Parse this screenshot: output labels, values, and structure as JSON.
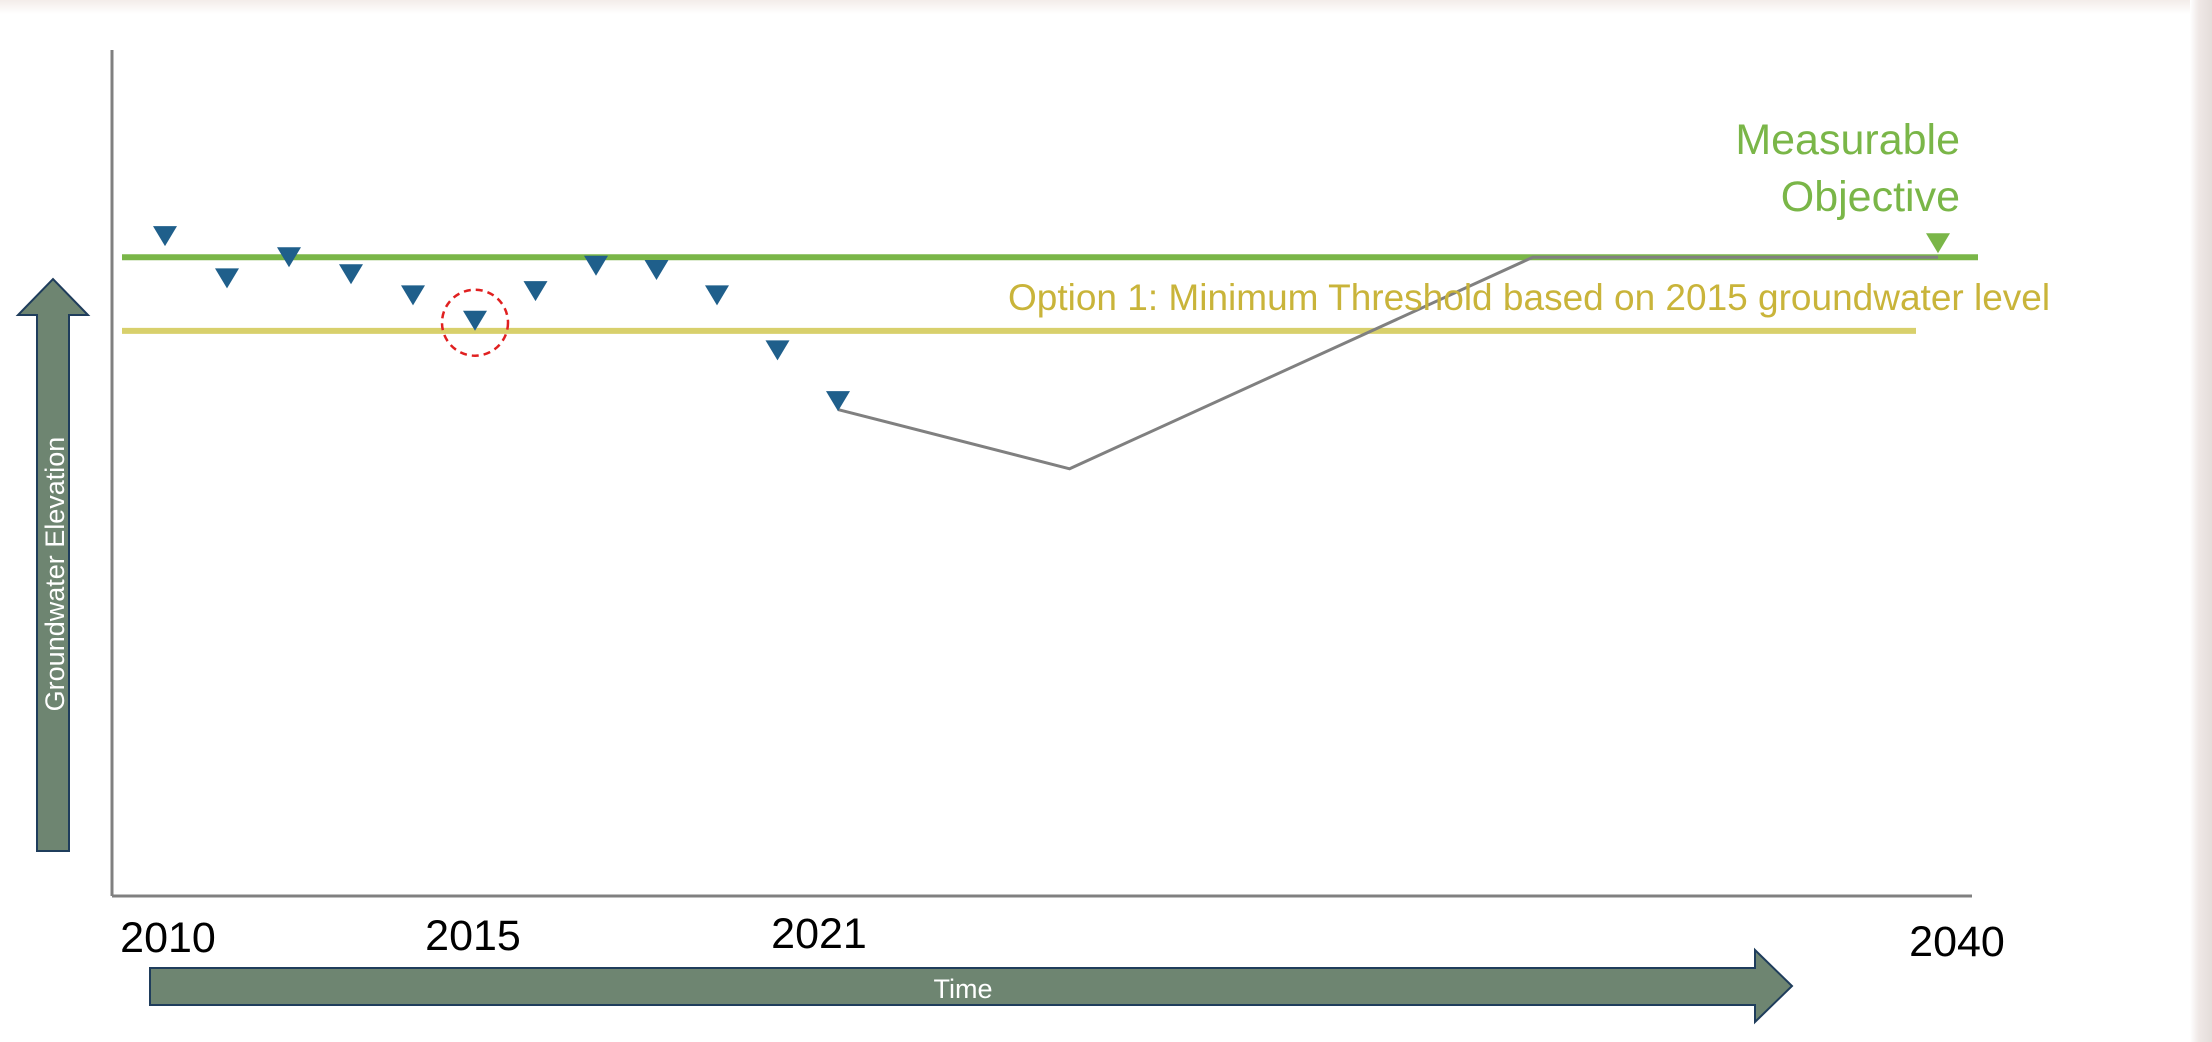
{
  "chart_data": {
    "type": "scatter",
    "title": "",
    "xlabel": "Time",
    "ylabel": "Groundwater Elevation",
    "x_tick_labels": [
      "2010",
      "2015",
      "2021",
      "2040"
    ],
    "xlim": [
      2010,
      2040
    ],
    "ylim": [
      0,
      100
    ],
    "series": [
      {
        "kind": "observed",
        "marker": "triangle-down",
        "color": "#1f5f8b",
        "x": [
          2010,
          2011,
          2012,
          2013,
          2014,
          2015,
          2016,
          2017,
          2018,
          2019,
          2020,
          2021
        ],
        "y": [
          78,
          73,
          75.5,
          73.5,
          71,
          68,
          71.5,
          74.5,
          74,
          71,
          64.5,
          58.5
        ]
      },
      {
        "kind": "projected",
        "color": "#808080",
        "x": [
          2021,
          2025,
          2033,
          2040
        ],
        "y": [
          57.5,
          50.5,
          75.5,
          75.5
        ]
      }
    ],
    "reference_lines": [
      {
        "label": "Measurable Objective",
        "y": 75.5,
        "color": "#7ab648",
        "marker_x": 2040
      },
      {
        "label": "Option 1: Minimum Threshold based on 2015 groundwater level",
        "y": 66.8,
        "color": "#d8d06c",
        "text_color": "#c9b43a"
      }
    ],
    "highlight": {
      "x": 2015,
      "color": "#e02020"
    },
    "grid": false,
    "legend": "none",
    "axis_color": "#808080",
    "arrow_color": "#6e8571",
    "arrow_border": "#1f3d5c"
  }
}
